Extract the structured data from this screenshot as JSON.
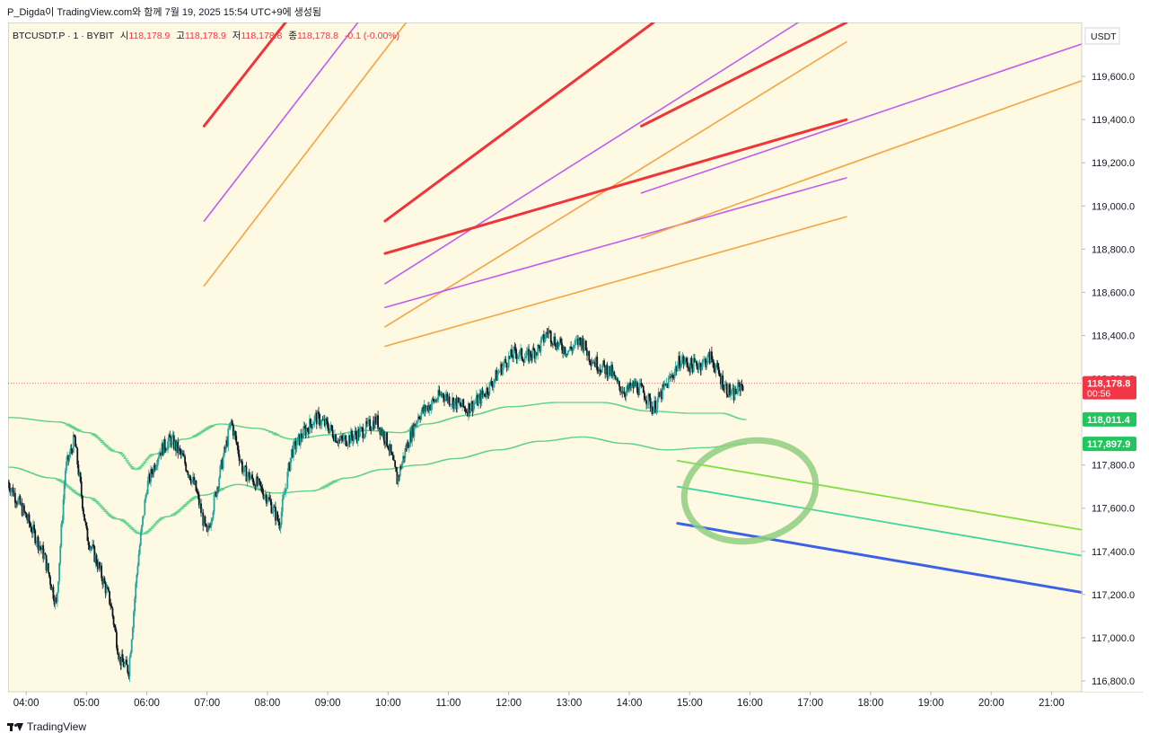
{
  "caption": "P_Digda이 TradingView.com와 함께 7월 19, 2025 15:54 UTC+9에 생성됨",
  "legend": {
    "symbol": "BTCUSDT.P · 1 · BYBIT",
    "open_label": "시",
    "open": "118,178.9",
    "high_label": "고",
    "high": "118,178.9",
    "low_label": "저",
    "low": "118,178.8",
    "close_label": "종",
    "close": "118,178.8",
    "change": "-0.1 (-0.00%)"
  },
  "footer": {
    "brand": "TradingView"
  },
  "colors": {
    "background": "#fdf9e3",
    "candle_up": "#26a69a",
    "candle_down": "#131722",
    "price_tag": "#f23645",
    "green_tag": "#22c55e",
    "envelope": "#5fd38c",
    "red_line": "#f03438",
    "purple_line": "#c05cf0",
    "orange_line": "#f7a440",
    "lime_line": "#7ee040",
    "teal_line": "#3ed6a0",
    "blue_line": "#3a62e6",
    "highlight_circle": "#8fcf80"
  },
  "chart_data": {
    "type": "candlestick",
    "currency": "USDT",
    "ylim": [
      116750,
      119850
    ],
    "y_ticks": [
      116800,
      117000,
      117200,
      117400,
      117600,
      117800,
      118000,
      118200,
      118400,
      118600,
      118800,
      119000,
      119200,
      119400,
      119600
    ],
    "x_range": [
      3.7,
      21.5
    ],
    "x_ticks": [
      {
        "t": 4,
        "label": "04:00"
      },
      {
        "t": 5,
        "label": "05:00"
      },
      {
        "t": 6,
        "label": "06:00"
      },
      {
        "t": 7,
        "label": "07:00"
      },
      {
        "t": 8,
        "label": "08:00"
      },
      {
        "t": 9,
        "label": "09:00"
      },
      {
        "t": 10,
        "label": "10:00"
      },
      {
        "t": 11,
        "label": "11:00"
      },
      {
        "t": 12,
        "label": "12:00"
      },
      {
        "t": 13,
        "label": "13:00"
      },
      {
        "t": 14,
        "label": "14:00"
      },
      {
        "t": 15,
        "label": "15:00"
      },
      {
        "t": 16,
        "label": "16:00"
      },
      {
        "t": 17,
        "label": "17:00"
      },
      {
        "t": 18,
        "label": "18:00"
      },
      {
        "t": 19,
        "label": "19:00"
      },
      {
        "t": 20,
        "label": "20:00"
      },
      {
        "t": 21,
        "label": "21:00"
      }
    ],
    "price_path": [
      [
        3.7,
        117720
      ],
      [
        4.0,
        117560
      ],
      [
        4.3,
        117380
      ],
      [
        4.5,
        117150
      ],
      [
        4.65,
        117780
      ],
      [
        4.8,
        117920
      ],
      [
        5.0,
        117480
      ],
      [
        5.2,
        117330
      ],
      [
        5.4,
        117160
      ],
      [
        5.55,
        116900
      ],
      [
        5.7,
        116850
      ],
      [
        5.85,
        117350
      ],
      [
        6.0,
        117700
      ],
      [
        6.2,
        117860
      ],
      [
        6.4,
        117920
      ],
      [
        6.6,
        117830
      ],
      [
        6.8,
        117700
      ],
      [
        7.0,
        117470
      ],
      [
        7.2,
        117750
      ],
      [
        7.4,
        118000
      ],
      [
        7.6,
        117770
      ],
      [
        7.8,
        117720
      ],
      [
        8.0,
        117650
      ],
      [
        8.2,
        117530
      ],
      [
        8.4,
        117860
      ],
      [
        8.6,
        117950
      ],
      [
        8.8,
        118020
      ],
      [
        9.0,
        117980
      ],
      [
        9.2,
        117910
      ],
      [
        9.4,
        117930
      ],
      [
        9.6,
        117960
      ],
      [
        9.8,
        118010
      ],
      [
        10.0,
        117900
      ],
      [
        10.15,
        117730
      ],
      [
        10.3,
        117880
      ],
      [
        10.5,
        118030
      ],
      [
        10.7,
        118080
      ],
      [
        10.9,
        118130
      ],
      [
        11.1,
        118090
      ],
      [
        11.3,
        118060
      ],
      [
        11.5,
        118100
      ],
      [
        11.7,
        118170
      ],
      [
        11.9,
        118260
      ],
      [
        12.1,
        118320
      ],
      [
        12.3,
        118300
      ],
      [
        12.5,
        118340
      ],
      [
        12.65,
        118420
      ],
      [
        12.8,
        118360
      ],
      [
        13.0,
        118330
      ],
      [
        13.2,
        118380
      ],
      [
        13.35,
        118300
      ],
      [
        13.5,
        118260
      ],
      [
        13.7,
        118230
      ],
      [
        13.8,
        118170
      ],
      [
        13.95,
        118140
      ],
      [
        14.1,
        118170
      ],
      [
        14.25,
        118130
      ],
      [
        14.4,
        118060
      ],
      [
        14.55,
        118140
      ],
      [
        14.7,
        118210
      ],
      [
        14.85,
        118290
      ],
      [
        15.0,
        118260
      ],
      [
        15.2,
        118270
      ],
      [
        15.35,
        118300
      ],
      [
        15.5,
        118210
      ],
      [
        15.6,
        118160
      ],
      [
        15.72,
        118120
      ],
      [
        15.85,
        118170
      ],
      [
        15.9,
        118179
      ]
    ],
    "current_price": 118178.8,
    "price_tags": [
      {
        "value": 118178.8,
        "label": "118,178.8",
        "sublabel": "00:56",
        "color": "#f23645"
      },
      {
        "value": 118011.4,
        "label": "118,011.4",
        "color": "#22c55e"
      },
      {
        "value": 117897.9,
        "label": "117,897.9",
        "color": "#22c55e"
      }
    ],
    "envelope_upper": [
      [
        3.7,
        118020
      ],
      [
        4.5,
        118000
      ],
      [
        5.0,
        117950
      ],
      [
        5.5,
        117860
      ],
      [
        5.8,
        117780
      ],
      [
        6.1,
        117850
      ],
      [
        6.6,
        117920
      ],
      [
        7.2,
        117990
      ],
      [
        7.8,
        117970
      ],
      [
        8.4,
        117920
      ],
      [
        9.0,
        117940
      ],
      [
        9.6,
        117960
      ],
      [
        10.2,
        117950
      ],
      [
        10.6,
        117990
      ],
      [
        11.3,
        118030
      ],
      [
        12.0,
        118070
      ],
      [
        12.8,
        118090
      ],
      [
        13.5,
        118090
      ],
      [
        14.3,
        118050
      ],
      [
        15.0,
        118040
      ],
      [
        15.5,
        118040
      ],
      [
        15.9,
        118011
      ]
    ],
    "envelope_lower": [
      [
        3.7,
        117790
      ],
      [
        4.4,
        117740
      ],
      [
        5.0,
        117650
      ],
      [
        5.5,
        117550
      ],
      [
        5.9,
        117480
      ],
      [
        6.3,
        117560
      ],
      [
        6.9,
        117660
      ],
      [
        7.5,
        117710
      ],
      [
        8.1,
        117670
      ],
      [
        8.7,
        117680
      ],
      [
        9.3,
        117740
      ],
      [
        9.9,
        117780
      ],
      [
        10.5,
        117800
      ],
      [
        11.1,
        117830
      ],
      [
        11.8,
        117870
      ],
      [
        12.5,
        117910
      ],
      [
        13.2,
        117930
      ],
      [
        13.9,
        117900
      ],
      [
        14.6,
        117870
      ],
      [
        15.2,
        117880
      ],
      [
        15.9,
        117898
      ]
    ],
    "trend_lines": [
      {
        "color": "red",
        "width": 3,
        "x1": 6.95,
        "y1": 119370,
        "x2": 8.3,
        "y2": 119850
      },
      {
        "color": "purple",
        "width": 1.6,
        "x1": 6.95,
        "y1": 118930,
        "x2": 9.5,
        "y2": 119850
      },
      {
        "color": "orange",
        "width": 1.6,
        "x1": 6.95,
        "y1": 118630,
        "x2": 10.3,
        "y2": 119850
      },
      {
        "color": "red",
        "width": 3,
        "x1": 9.95,
        "y1": 118930,
        "x2": 14.4,
        "y2": 119850
      },
      {
        "color": "purple",
        "width": 1.6,
        "x1": 9.95,
        "y1": 118640,
        "x2": 16.8,
        "y2": 119850
      },
      {
        "color": "orange",
        "width": 1.6,
        "x1": 9.95,
        "y1": 118440,
        "x2": 17.6,
        "y2": 119760
      },
      {
        "color": "red",
        "width": 3,
        "x1": 9.95,
        "y1": 118780,
        "x2": 17.6,
        "y2": 119400
      },
      {
        "color": "purple",
        "width": 1.6,
        "x1": 9.95,
        "y1": 118530,
        "x2": 17.6,
        "y2": 119130
      },
      {
        "color": "orange",
        "width": 1.6,
        "x1": 9.95,
        "y1": 118350,
        "x2": 17.6,
        "y2": 118950
      },
      {
        "color": "red",
        "width": 3,
        "x1": 14.2,
        "y1": 119370,
        "x2": 17.6,
        "y2": 119850
      },
      {
        "color": "purple",
        "width": 1.6,
        "x1": 14.2,
        "y1": 119060,
        "x2": 21.5,
        "y2": 119750
      },
      {
        "color": "orange",
        "width": 1.6,
        "x1": 14.2,
        "y1": 118850,
        "x2": 21.5,
        "y2": 119580
      },
      {
        "color": "lime",
        "width": 1.8,
        "x1": 14.8,
        "y1": 117820,
        "x2": 21.5,
        "y2": 117500
      },
      {
        "color": "teal",
        "width": 1.8,
        "x1": 14.8,
        "y1": 117700,
        "x2": 21.5,
        "y2": 117380
      },
      {
        "color": "blue",
        "width": 3,
        "x1": 14.8,
        "y1": 117530,
        "x2": 21.5,
        "y2": 117210
      }
    ],
    "highlight": {
      "cx": 16.0,
      "cy": 117680,
      "rx_hours": 1.1,
      "ry_price": 230
    }
  }
}
